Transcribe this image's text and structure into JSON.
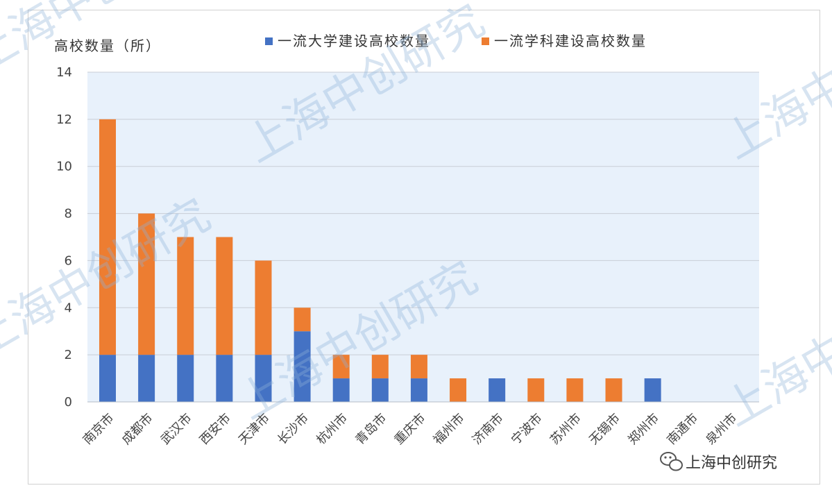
{
  "chart_data": {
    "type": "bar",
    "stacked": true,
    "ylabel": "高校数量（所）",
    "ylim": [
      0,
      14
    ],
    "yticks": [
      0,
      2,
      4,
      6,
      8,
      10,
      12,
      14
    ],
    "categories": [
      "南京市",
      "成都市",
      "武汉市",
      "西安市",
      "天津市",
      "长沙市",
      "杭州市",
      "青岛市",
      "重庆市",
      "福州市",
      "济南市",
      "宁波市",
      "苏州市",
      "无锡市",
      "郑州市",
      "南通市",
      "泉州市"
    ],
    "series": [
      {
        "name": "一流大学建设高校数量",
        "color": "#4472C4",
        "values": [
          2,
          2,
          2,
          2,
          2,
          3,
          1,
          1,
          1,
          0,
          1,
          0,
          0,
          0,
          1,
          0,
          0
        ]
      },
      {
        "name": "一流学科建设高校数量",
        "color": "#ED7D31",
        "values": [
          10,
          6,
          5,
          5,
          4,
          1,
          1,
          1,
          1,
          1,
          0,
          1,
          1,
          1,
          0,
          0,
          0
        ]
      }
    ],
    "grid": true,
    "legend_position": "top",
    "plot_background": "#e8f1fb"
  },
  "watermark": "上海中创研究",
  "brand": {
    "text": "上海中创研究",
    "icon": "wechat-icon"
  }
}
